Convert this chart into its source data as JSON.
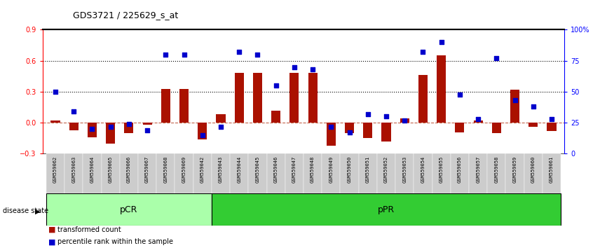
{
  "title": "GDS3721 / 225629_s_at",
  "samples": [
    "GSM559062",
    "GSM559063",
    "GSM559064",
    "GSM559065",
    "GSM559066",
    "GSM559067",
    "GSM559068",
    "GSM559069",
    "GSM559042",
    "GSM559043",
    "GSM559044",
    "GSM559045",
    "GSM559046",
    "GSM559047",
    "GSM559048",
    "GSM559049",
    "GSM559050",
    "GSM559051",
    "GSM559052",
    "GSM559053",
    "GSM559054",
    "GSM559055",
    "GSM559056",
    "GSM559057",
    "GSM559058",
    "GSM559059",
    "GSM559060",
    "GSM559061"
  ],
  "transformed_count": [
    0.02,
    -0.07,
    -0.14,
    -0.2,
    -0.1,
    -0.02,
    0.33,
    0.33,
    -0.16,
    0.08,
    0.48,
    0.48,
    0.12,
    0.48,
    0.48,
    -0.22,
    -0.1,
    -0.15,
    -0.18,
    0.04,
    0.46,
    0.65,
    -0.09,
    0.02,
    -0.1,
    0.32,
    -0.04,
    -0.08
  ],
  "percentile_rank": [
    50,
    34,
    20,
    22,
    24,
    19,
    80,
    80,
    15,
    22,
    82,
    80,
    55,
    70,
    68,
    22,
    17,
    32,
    30,
    27,
    82,
    90,
    48,
    28,
    77,
    43,
    38,
    28
  ],
  "pCR_count": 9,
  "pPR_count": 19,
  "bar_color": "#aa1100",
  "dot_color": "#0000cc",
  "ylim_left": [
    -0.3,
    0.9
  ],
  "ylim_right": [
    0,
    100
  ],
  "hline_values": [
    0.3,
    0.6
  ],
  "background_color": "#ffffff",
  "tick_bg": "#cccccc",
  "pCR_color": "#aaffaa",
  "pPR_color": "#33cc33",
  "label_transformed": "transformed count",
  "label_percentile": "percentile rank within the sample",
  "bar_width": 0.5
}
